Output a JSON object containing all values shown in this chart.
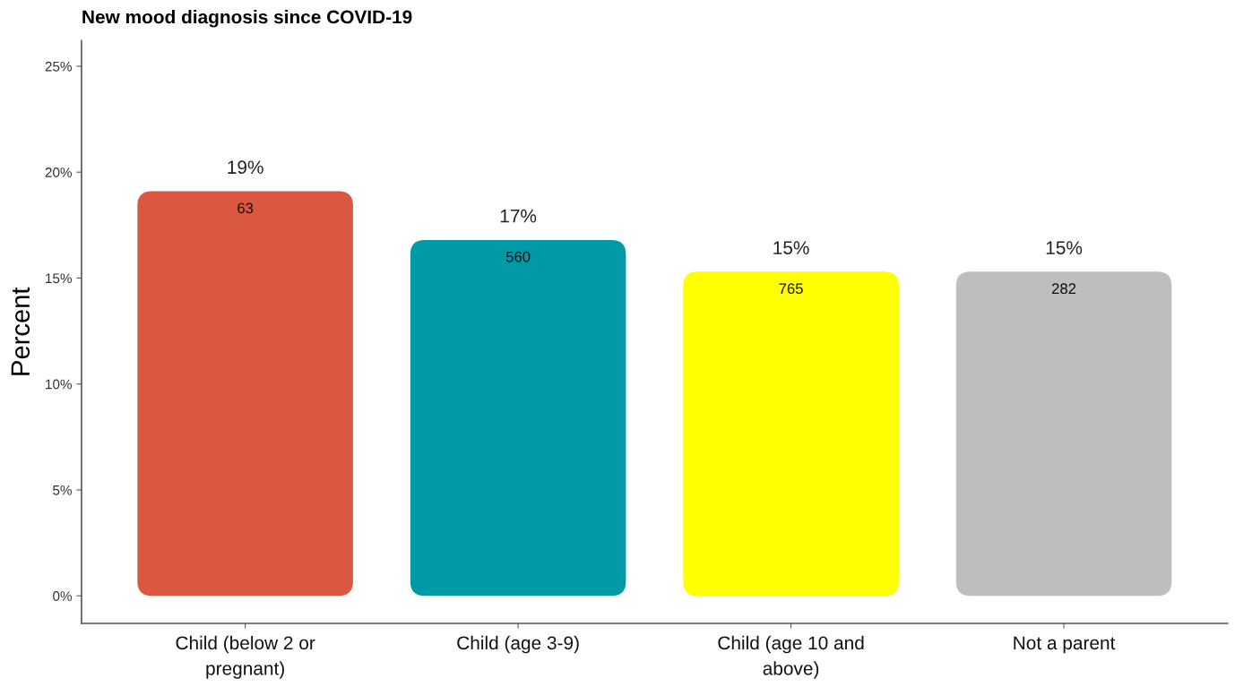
{
  "chart_data": {
    "type": "bar",
    "title": "New mood diagnosis since COVID-19",
    "ylabel": "Percent",
    "categories": [
      "Child (below 2 or\npregnant)",
      "Child (age 3-9)",
      "Child (age 10 and\nabove)",
      "Not a parent"
    ],
    "values": [
      19.1,
      16.8,
      15.3,
      15.3
    ],
    "colors": [
      "#d9583f",
      "#009aa6",
      "#ffff00",
      "#bebebe"
    ],
    "value_labels": [
      "19%",
      "17%",
      "15%",
      "15%"
    ],
    "annotations": [
      {
        "text": "63",
        "x": "Child (below 2 or\npregnant)",
        "y": 19.1
      },
      {
        "text": "560",
        "x": "Child (age 3-9)",
        "y": 16.8
      },
      {
        "text": "765",
        "x": "Child (age 10 and\nabove)",
        "y": 15.3
      },
      {
        "text": "282",
        "x": "Not a parent",
        "y": 15.3
      }
    ],
    "ylim": [
      -1.3,
      26.2
    ],
    "yticks": [
      {
        "value": 0,
        "label": "0%"
      },
      {
        "value": 5,
        "label": "5%"
      },
      {
        "value": 10,
        "label": "10%"
      },
      {
        "value": 15,
        "label": "15%"
      },
      {
        "value": 20,
        "label": "20%"
      },
      {
        "value": 25,
        "label": "25%"
      }
    ]
  }
}
